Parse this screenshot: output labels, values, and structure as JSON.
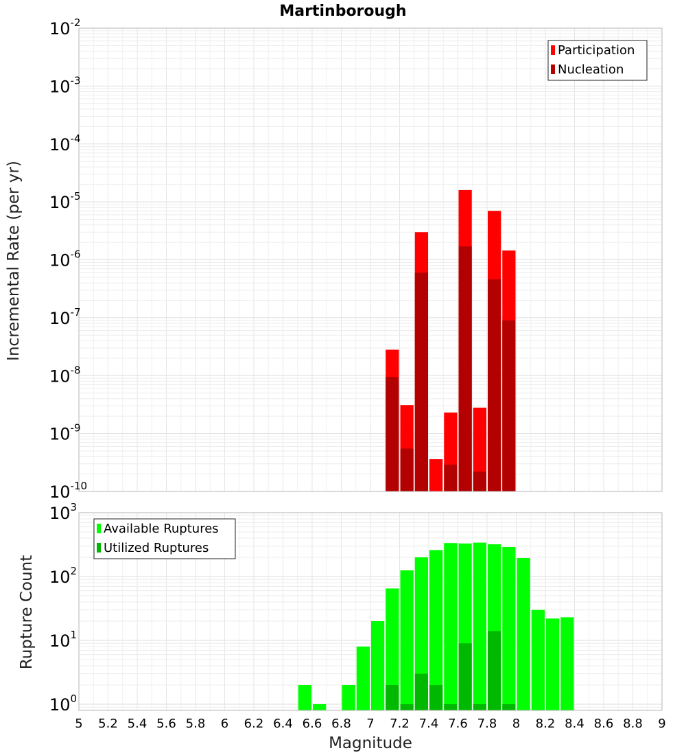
{
  "chart_data": [
    {
      "type": "bar",
      "panel": "top",
      "title": "Martinborough",
      "ylabel": "Incremental Rate (per yr)",
      "xlim": [
        5,
        9
      ],
      "ylim": [
        1e-10,
        0.01
      ],
      "yscale": "log",
      "ytick_base": "10",
      "ytick_exponents": [
        "-10",
        "-9",
        "-8",
        "-7",
        "-6",
        "-5",
        "-4",
        "-3",
        "-2"
      ],
      "grid": true,
      "legend_position": "top-right",
      "bar_width": 0.1,
      "x": [
        7.15,
        7.25,
        7.35,
        7.45,
        7.55,
        7.65,
        7.75,
        7.85,
        7.95
      ],
      "series": [
        {
          "name": "Participation",
          "color": "#ff0000",
          "values": [
            2.8e-08,
            3.1e-09,
            3e-06,
            3.6e-10,
            2.3e-09,
            1.6e-05,
            2.8e-09,
            7e-06,
            1.45e-06
          ]
        },
        {
          "name": "Nucleation",
          "color": "#b30000",
          "values": [
            9.5e-09,
            5.5e-10,
            6e-07,
            null,
            2.9e-10,
            1.7e-06,
            2.2e-10,
            4.6e-07,
            9e-08
          ]
        }
      ]
    },
    {
      "type": "bar",
      "panel": "bottom",
      "ylabel": "Rupture Count",
      "xlabel": "Magnitude",
      "xlim": [
        5,
        9
      ],
      "ylim": [
        0.8,
        1000
      ],
      "yscale": "log",
      "ytick_base": "10",
      "ytick_exponents": [
        "0",
        "1",
        "2",
        "3"
      ],
      "xticks": [
        "5",
        "5.2",
        "5.4",
        "5.6",
        "5.8",
        "6",
        "6.2",
        "6.4",
        "6.6",
        "6.8",
        "7",
        "7.2",
        "7.4",
        "7.6",
        "7.8",
        "8",
        "8.2",
        "8.4",
        "8.6",
        "8.8",
        "9"
      ],
      "grid": true,
      "legend_position": "top-left",
      "bar_width": 0.1,
      "x": [
        6.55,
        6.65,
        6.85,
        6.95,
        7.05,
        7.15,
        7.25,
        7.35,
        7.45,
        7.55,
        7.65,
        7.75,
        7.85,
        7.95,
        8.05,
        8.15,
        8.25,
        8.35
      ],
      "series": [
        {
          "name": "Available Ruptures",
          "color": "#00ff00",
          "values": [
            2,
            1,
            2,
            8,
            20,
            65,
            125,
            200,
            260,
            335,
            330,
            340,
            320,
            290,
            195,
            30,
            22,
            23
          ]
        },
        {
          "name": "Utilized Ruptures",
          "color": "#00b800",
          "values": [
            null,
            null,
            null,
            null,
            null,
            2,
            1,
            3,
            2,
            1,
            9,
            1,
            14,
            1,
            null,
            null,
            null,
            null
          ]
        }
      ]
    }
  ]
}
